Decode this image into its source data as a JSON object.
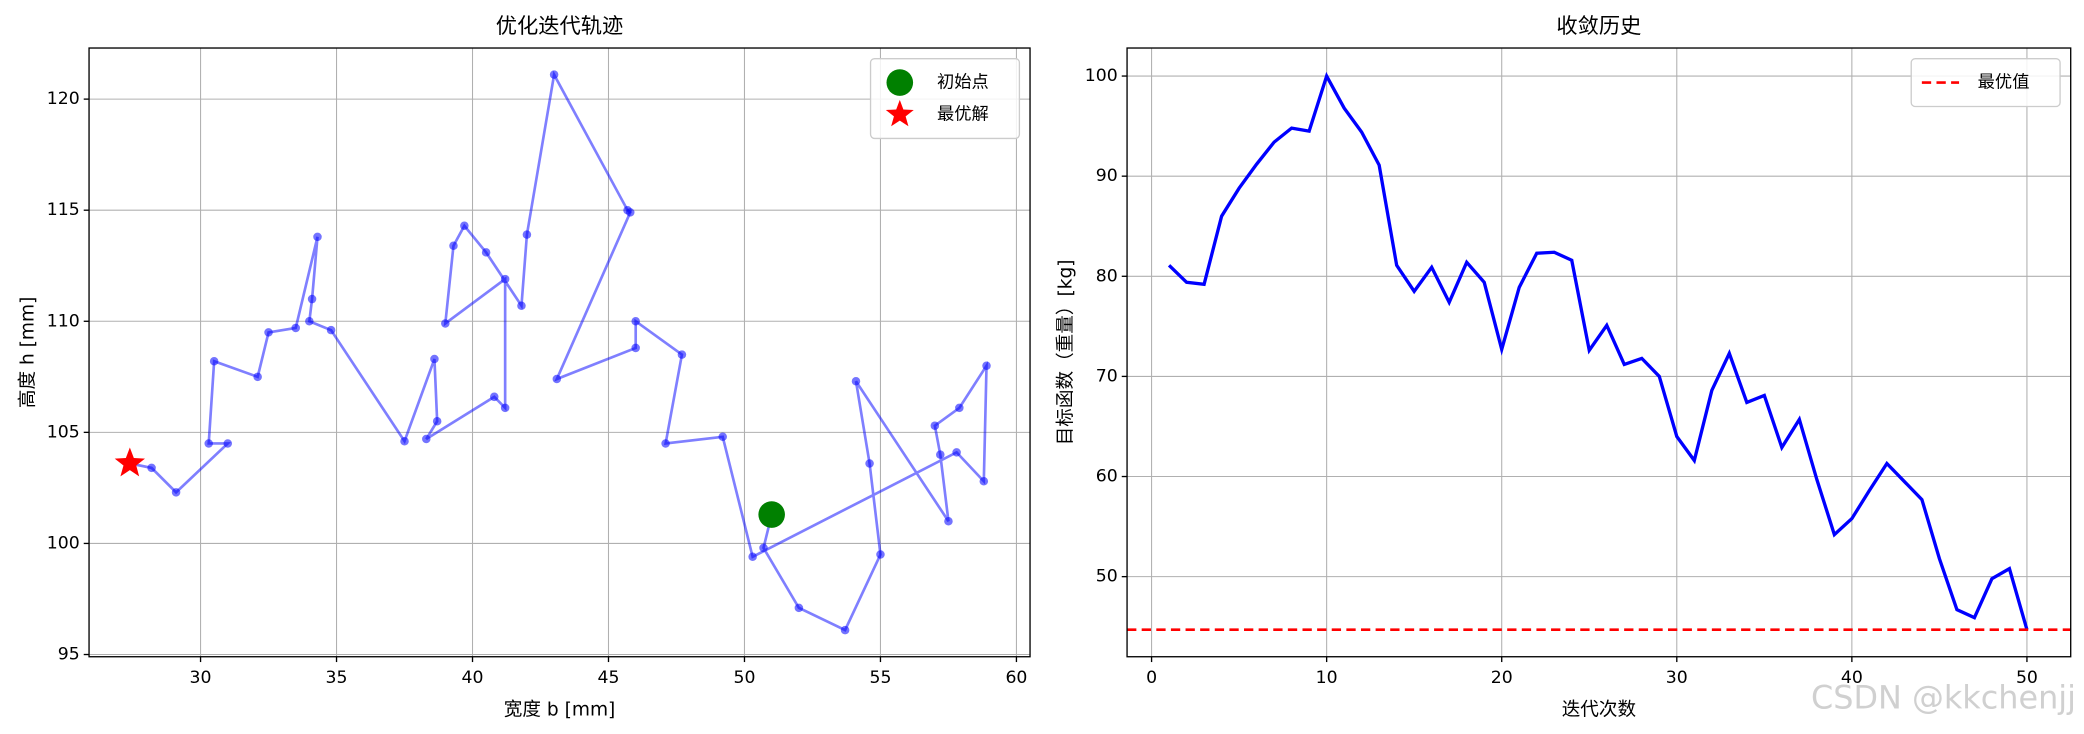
{
  "watermark": "CSDN @kkchenjj",
  "chart_data": [
    {
      "type": "scatter",
      "title": "优化迭代轨迹",
      "xlabel": "宽度 b [mm]",
      "ylabel": "高度 h [mm]",
      "xlim": [
        25.9,
        60.5
      ],
      "ylim": [
        94.9,
        122.3
      ],
      "xticks": [
        30,
        35,
        40,
        45,
        50,
        55,
        60
      ],
      "yticks": [
        95,
        100,
        105,
        110,
        115,
        120
      ],
      "grid": true,
      "legend": "upper right",
      "series": [
        {
          "color": "#0000ff",
          "style": "path",
          "x": [
            51.0,
            50.7,
            52.0,
            53.7,
            55.0,
            54.6,
            54.1,
            57.5,
            57.2,
            57.0,
            57.9,
            58.9,
            58.8,
            57.8,
            50.3,
            49.2,
            47.1,
            47.7,
            46.0,
            46.0,
            43.1,
            45.8,
            45.7,
            43.0,
            42.0,
            41.8,
            40.5,
            39.7,
            39.3,
            39.0,
            41.2,
            41.2,
            40.8,
            38.3,
            38.7,
            38.6,
            37.5,
            34.8,
            34.0,
            34.1,
            34.3,
            33.5,
            32.5,
            32.1,
            30.5,
            30.3,
            31.0,
            29.1,
            28.2,
            27.4,
            27.4
          ],
          "y": [
            101.3,
            99.8,
            97.1,
            96.1,
            99.5,
            103.6,
            107.3,
            101.0,
            104.0,
            105.3,
            106.1,
            108.0,
            102.8,
            104.1,
            99.4,
            104.8,
            104.5,
            108.5,
            110.0,
            108.8,
            107.4,
            114.9,
            115.0,
            121.1,
            113.9,
            110.7,
            113.1,
            114.3,
            113.4,
            109.9,
            111.9,
            106.1,
            106.6,
            104.7,
            105.5,
            108.3,
            104.6,
            109.6,
            110.0,
            111.0,
            113.8,
            109.7,
            109.5,
            107.5,
            108.2,
            104.5,
            104.5,
            102.3,
            103.4,
            103.6,
            103.6
          ]
        },
        {
          "name": "初始点",
          "color": "#008000",
          "marker": "circle",
          "x": [
            51.0
          ],
          "y": [
            101.3
          ]
        },
        {
          "name": "最优解",
          "color": "#ff0000",
          "marker": "star",
          "x": [
            27.4
          ],
          "y": [
            103.6
          ]
        }
      ]
    },
    {
      "type": "line",
      "title": "收敛历史",
      "xlabel": "迭代次数",
      "ylabel": "目标函数（重量）[kg]",
      "xlim": [
        -1.4,
        52.5
      ],
      "ylim": [
        42.0,
        102.8
      ],
      "xticks": [
        0,
        10,
        20,
        30,
        40,
        50
      ],
      "yticks": [
        50,
        60,
        70,
        80,
        90,
        100
      ],
      "grid": true,
      "legend": "upper right",
      "x": [
        1,
        2,
        3,
        4,
        5,
        6,
        7,
        8,
        9,
        10,
        11,
        12,
        13,
        14,
        15,
        16,
        17,
        18,
        19,
        20,
        21,
        22,
        23,
        24,
        25,
        26,
        27,
        28,
        29,
        30,
        31,
        32,
        33,
        34,
        35,
        36,
        37,
        38,
        39,
        40,
        41,
        42,
        43,
        44,
        45,
        46,
        47,
        48,
        49,
        50
      ],
      "series": [
        {
          "color": "#0000ff",
          "values": [
            81.1,
            79.4,
            79.2,
            86.0,
            88.8,
            91.2,
            93.4,
            94.8,
            94.5,
            100.0,
            96.8,
            94.4,
            91.1,
            81.1,
            78.5,
            80.9,
            77.4,
            81.4,
            79.4,
            72.7,
            78.9,
            82.3,
            82.4,
            81.6,
            72.6,
            75.1,
            71.2,
            71.8,
            70.0,
            64.0,
            61.6,
            68.6,
            72.3,
            67.4,
            68.1,
            62.9,
            65.7,
            59.7,
            54.2,
            55.8,
            58.6,
            61.3,
            59.5,
            57.7,
            51.8,
            46.7,
            45.9,
            49.8,
            50.8,
            44.7
          ]
        }
      ],
      "hline": {
        "name": "最优值",
        "value": 44.7,
        "color": "#ff0000"
      }
    }
  ]
}
